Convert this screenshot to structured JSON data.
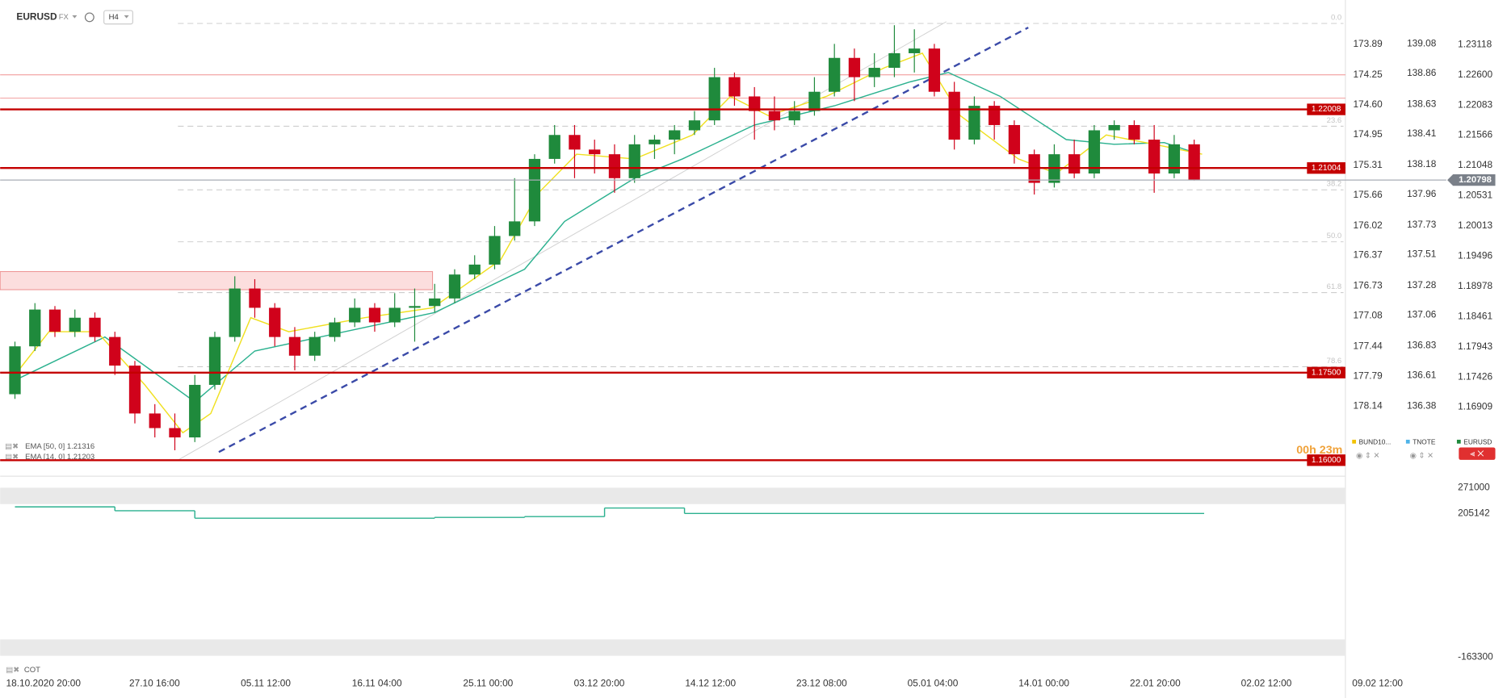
{
  "header": {
    "symbol": "EURUSD",
    "market": "FX",
    "interval": "H4"
  },
  "chart_data": {
    "type": "candlestick",
    "x_labels": [
      "18.10.2020 20:00",
      "27.10 16:00",
      "05.11 12:00",
      "16.11 04:00",
      "25.11 00:00",
      "03.12 20:00",
      "14.12 12:00",
      "23.12 08:00",
      "05.01 04:00",
      "14.01 00:00",
      "22.01 20:00",
      "02.02 12:00",
      "09.02 12:00"
    ],
    "candles": {
      "open": [
        1.1713,
        1.1795,
        1.1858,
        1.182,
        1.1844,
        1.1811,
        1.1762,
        1.168,
        1.1655,
        1.1639,
        1.1729,
        1.1811,
        1.1894,
        1.1861,
        1.1811,
        1.1779,
        1.1811,
        1.1836,
        1.1861,
        1.1836,
        1.1861,
        1.1864,
        1.1877,
        1.1918,
        1.1935,
        1.1984,
        1.2009,
        1.2116,
        1.2157,
        1.2132,
        1.2124,
        1.2083,
        1.2141,
        1.2149,
        1.2165,
        1.2182,
        1.2256,
        1.2223,
        1.2198,
        1.2182,
        1.2198,
        1.2231,
        1.2289,
        1.2256,
        1.2272,
        1.2297,
        1.2305,
        1.2231,
        1.2149,
        1.2207,
        1.2174,
        1.2124,
        1.2075,
        1.2124,
        1.2091,
        1.2165,
        1.2174,
        1.2149,
        1.2091,
        1.2141
      ],
      "high": [
        1.1803,
        1.1869,
        1.1864,
        1.1858,
        1.1853,
        1.182,
        1.177,
        1.1696,
        1.168,
        1.1746,
        1.182,
        1.1915,
        1.191,
        1.1869,
        1.1828,
        1.182,
        1.1844,
        1.1877,
        1.1869,
        1.1886,
        1.1894,
        1.1902,
        1.1927,
        1.1951,
        1.2001,
        1.2083,
        1.2124,
        1.2174,
        1.2174,
        1.2149,
        1.2141,
        1.2157,
        1.2157,
        1.2174,
        1.2198,
        1.2272,
        1.2264,
        1.2239,
        1.2223,
        1.2215,
        1.2256,
        1.2313,
        1.2305,
        1.2297,
        1.2345,
        1.2338,
        1.2313,
        1.2248,
        1.2223,
        1.2215,
        1.2182,
        1.2132,
        1.2141,
        1.2149,
        1.2174,
        1.2182,
        1.2182,
        1.2174,
        1.2157,
        1.2149
      ],
      "low": [
        1.1705,
        1.1787,
        1.1811,
        1.1811,
        1.1803,
        1.1746,
        1.1663,
        1.1639,
        1.1617,
        1.1631,
        1.1721,
        1.1803,
        1.1844,
        1.1795,
        1.1754,
        1.177,
        1.1803,
        1.1828,
        1.182,
        1.1828,
        1.1803,
        1.1853,
        1.1869,
        1.191,
        1.1927,
        1.1976,
        1.2001,
        1.2108,
        1.2083,
        1.2091,
        1.2058,
        1.2075,
        1.2116,
        1.2124,
        1.2157,
        1.2174,
        1.2207,
        1.2149,
        1.2165,
        1.2174,
        1.219,
        1.2223,
        1.2215,
        1.2239,
        1.2256,
        1.2264,
        1.2223,
        1.2132,
        1.2141,
        1.2149,
        1.2108,
        1.2055,
        1.2067,
        1.2083,
        1.2083,
        1.2149,
        1.2141,
        1.2058,
        1.2083,
        1.2079
      ],
      "close": [
        1.1795,
        1.1858,
        1.182,
        1.1844,
        1.1811,
        1.1762,
        1.168,
        1.1655,
        1.1639,
        1.1729,
        1.1811,
        1.1894,
        1.1861,
        1.1811,
        1.1779,
        1.1811,
        1.1836,
        1.1861,
        1.1836,
        1.1861,
        1.1864,
        1.1877,
        1.1918,
        1.1935,
        1.1984,
        1.2009,
        1.2116,
        1.2157,
        1.2132,
        1.2124,
        1.2083,
        1.2141,
        1.2149,
        1.2165,
        1.2182,
        1.2256,
        1.2223,
        1.2198,
        1.2182,
        1.2198,
        1.2231,
        1.2289,
        1.2256,
        1.2272,
        1.2297,
        1.2305,
        1.2231,
        1.2149,
        1.2207,
        1.2174,
        1.2124,
        1.2075,
        1.2124,
        1.2091,
        1.2165,
        1.2174,
        1.2149,
        1.2091,
        1.2141,
        1.20798
      ]
    },
    "up_color": "#1f8a3c",
    "down_color": "#d0021b",
    "ylim": [
      1.1589,
      1.2375
    ],
    "yticks": [
      1.23118,
      {
        "value": 1.226,
        "label": "1.22600"
      },
      1.22083,
      1.21566,
      1.21048,
      1.20531,
      1.20013,
      1.19496,
      1.18978,
      1.18461,
      1.17943,
      1.17426,
      1.16909
    ],
    "compare": [
      {
        "name": "BUND10...",
        "color": "#f2c200",
        "ylim": [
          178.85,
          173.46
        ],
        "yticks": [
          173.89,
          174.25,
          {
            "value": 174.6,
            "label": "174.60"
          },
          174.95,
          175.31,
          175.66,
          176.02,
          176.37,
          176.73,
          177.08,
          177.44,
          177.79,
          178.14
        ]
      },
      {
        "name": "TNOTE",
        "color": "#4fb3e8",
        "ylim": [
          135.93,
          139.35
        ],
        "yticks": [
          139.08,
          138.86,
          138.63,
          138.41,
          138.18,
          137.96,
          137.73,
          137.51,
          137.28,
          137.06,
          136.83,
          136.61,
          136.38
        ]
      }
    ],
    "main_color": "#1f8a3c",
    "series": [
      {
        "name": "EMA [50, 0] 1.21316",
        "color": "#2bb18f",
        "x": [
          0,
          4.5,
          9,
          12,
          16.5,
          21,
          25.5,
          27.5,
          31,
          33.4,
          37,
          41,
          44.8,
          46.7,
          49.3,
          52.6,
          55,
          57.5,
          59
        ],
        "values": [
          1.1737,
          1.1811,
          1.17,
          1.1787,
          1.182,
          1.1853,
          1.1927,
          1.2009,
          1.2083,
          1.2116,
          1.2174,
          1.2207,
          1.2248,
          1.2264,
          1.2223,
          1.2149,
          1.2141,
          1.2144,
          1.2127
        ]
      },
      {
        "name": "EMA [14, 0] 1.21203",
        "color": "#f0e020",
        "x": [
          0,
          1.7,
          4.1,
          6.5,
          8.4,
          9.8,
          11.8,
          13.7,
          17.5,
          20.9,
          24.3,
          26.2,
          28.1,
          31,
          33.9,
          35.8,
          37.7,
          40.6,
          43.5,
          45.4,
          47.3,
          50.2,
          52.1,
          54.6,
          57,
          59.4
        ],
        "values": [
          1.1746,
          1.182,
          1.182,
          1.1729,
          1.1647,
          1.168,
          1.1844,
          1.182,
          1.1844,
          1.1861,
          1.1943,
          1.2058,
          1.2124,
          1.2116,
          1.2157,
          1.2223,
          1.219,
          1.2223,
          1.2272,
          1.2297,
          1.219,
          1.2116,
          1.2091,
          1.2157,
          1.2141,
          1.2124
        ]
      }
    ],
    "levels": [
      1.22008,
      1.21004,
      {
        "value": 1.175,
        "label": "1.17500"
      },
      {
        "value": 1.16,
        "label": "1.16000"
      }
    ],
    "level_color": "#c40000",
    "thin_levels": [
      1.226,
      1.222
    ],
    "last_price": 1.20798,
    "fib": [
      {
        "value": 1.2348,
        "label": "0.0"
      },
      {
        "value": 1.2172,
        "label": "23.6"
      },
      {
        "value": 1.2063,
        "label": "38.2"
      },
      {
        "value": 1.1974,
        "label": "50.0"
      },
      {
        "value": 1.1887,
        "label": "61.8"
      },
      {
        "value": 1.176,
        "label": "78.6"
      }
    ],
    "zone": [
      1.1923,
      1.1892
    ],
    "trendline": [
      1.1614,
      1.2341
    ],
    "trendline_x": [
      10.2,
      50.7
    ],
    "guide_line": [
      1.1601,
      1.2351
    ],
    "guide_line_x": [
      8.2,
      46.6
    ],
    "countdown": "00h 23m"
  },
  "cot_panel": {
    "title": "COT",
    "color": "#2bb18f",
    "ylim": [
      -176720,
      290680
    ],
    "yticks": [
      271000,
      205142,
      -163300
    ],
    "x": [
      0,
      5,
      9,
      21,
      25.5,
      29.5,
      33.5
    ],
    "values": [
      222000,
      212000,
      193000,
      195000,
      197000,
      219000,
      205142
    ]
  }
}
